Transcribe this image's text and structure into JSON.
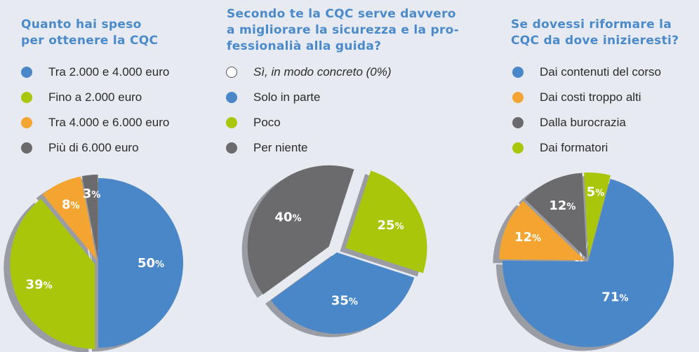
{
  "colors": {
    "blue": "#4a87c8",
    "green": "#a9c60a",
    "orange": "#f3a431",
    "gray": "#6b6b6d",
    "shadow": "#9a9ca3",
    "title": "#4a8acb"
  },
  "panels": [
    {
      "title_lines": [
        "Quanto hai speso",
        "per ottenere la CQC"
      ],
      "legend": [
        {
          "label": "Tra 2.000 e 4.000 euro",
          "color": "blue"
        },
        {
          "label": "Fino a 2.000 euro",
          "color": "green"
        },
        {
          "label": "Tra 4.000 e 6.000 euro",
          "color": "orange"
        },
        {
          "label": "Più di 6.000 euro",
          "color": "gray"
        }
      ]
    },
    {
      "title_lines": [
        "Secondo te la CQC serve davvero",
        "a migliorare la sicurezza e la pro-",
        "fessionalià alla guida?"
      ],
      "legend": [
        {
          "label": "Sì, in modo concreto (0%)",
          "color": "none",
          "italic": true
        },
        {
          "label": "Solo in parte",
          "color": "blue"
        },
        {
          "label": "Poco",
          "color": "green"
        },
        {
          "label": "Per niente",
          "color": "gray"
        }
      ]
    },
    {
      "title_lines": [
        "Se dovessi riformare la",
        "CQC da dove inizieresti?"
      ],
      "legend": [
        {
          "label": "Dai contenuti del corso",
          "color": "blue"
        },
        {
          "label": "Dai costi troppo alti",
          "color": "orange"
        },
        {
          "label": "Dalla burocrazia",
          "color": "gray"
        },
        {
          "label": "Dai formatori",
          "color": "green"
        }
      ]
    }
  ],
  "chart_data": [
    {
      "type": "pie",
      "title": "Quanto hai speso per ottenere la CQC",
      "categories": [
        "Tra 2.000 e 4.000 euro",
        "Fino a 2.000 euro",
        "Tra 4.000 e 6.000 euro",
        "Più di 6.000 euro"
      ],
      "values": [
        50,
        39,
        8,
        3
      ],
      "labels": [
        "50%",
        "39%",
        "8%",
        "3%"
      ],
      "colors": [
        "blue",
        "green",
        "orange",
        "gray"
      ],
      "exploded": [
        false,
        true,
        true,
        true
      ]
    },
    {
      "type": "pie",
      "title": "Secondo te la CQC serve davvero a migliorare la sicurezza e la professionalià alla guida?",
      "categories": [
        "Sì, in modo concreto",
        "Solo in parte",
        "Poco",
        "Per niente"
      ],
      "values": [
        0,
        35,
        25,
        40
      ],
      "slices": [
        {
          "category": "Poco",
          "value": 25,
          "label": "25%",
          "color": "green",
          "exploded": true
        },
        {
          "category": "Solo in parte",
          "value": 35,
          "label": "35%",
          "color": "blue",
          "exploded": false
        },
        {
          "category": "Per niente",
          "value": 40,
          "label": "40%",
          "color": "gray",
          "exploded": true
        }
      ]
    },
    {
      "type": "pie",
      "title": "Se dovessi riformare la CQC da dove inizieresti?",
      "categories": [
        "Dai contenuti del corso",
        "Dai costi troppo alti",
        "Dalla burocrazia",
        "Dai formatori"
      ],
      "values": [
        71,
        12,
        12,
        5
      ],
      "labels": [
        "71%",
        "12%",
        "12%",
        "5%"
      ],
      "colors": [
        "blue",
        "orange",
        "gray",
        "green"
      ],
      "exploded": [
        false,
        true,
        true,
        true
      ]
    }
  ]
}
